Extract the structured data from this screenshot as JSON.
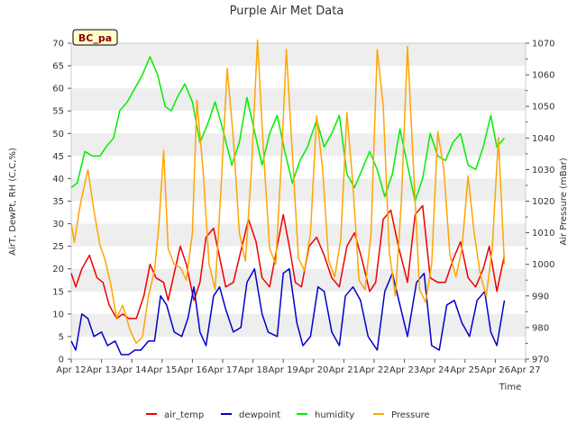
{
  "chart_data": {
    "type": "line",
    "title": "Purple Air Met Data",
    "xlabel": "Time",
    "ylabel": "AirT, DewPt, RH (C,C,%)",
    "y2label": "Air Pressure (mBar)",
    "xlim": [
      12,
      27
    ],
    "ylim": [
      0,
      70
    ],
    "y2lim": [
      970,
      1070
    ],
    "x_ticks": [
      12,
      13,
      14,
      15,
      16,
      17,
      18,
      19,
      20,
      21,
      22,
      23,
      24,
      25,
      26,
      27
    ],
    "x_tick_labels": [
      "Apr 12",
      "Apr 13",
      "Apr 14",
      "Apr 15",
      "Apr 16",
      "Apr 17",
      "Apr 18",
      "Apr 19",
      "Apr 20",
      "Apr 21",
      "Apr 22",
      "Apr 23",
      "Apr 24",
      "Apr 25",
      "Apr 26",
      "Apr 27"
    ],
    "y_ticks": [
      0,
      5,
      10,
      15,
      20,
      25,
      30,
      35,
      40,
      45,
      50,
      55,
      60,
      65,
      70
    ],
    "y2_ticks": [
      970,
      980,
      990,
      1000,
      1010,
      1020,
      1030,
      1040,
      1050,
      1060,
      1070
    ],
    "grid": "horizontal bands",
    "legend_position": "bottom",
    "annotation": "BC_pa",
    "series": [
      {
        "name": "air_temp",
        "axis": "left",
        "color": "#ee0000",
        "x": [
          12.0,
          12.15,
          12.35,
          12.6,
          12.85,
          13.05,
          13.25,
          13.5,
          13.7,
          13.9,
          14.15,
          14.4,
          14.6,
          14.8,
          15.05,
          15.2,
          15.4,
          15.6,
          15.8,
          16.05,
          16.25,
          16.45,
          16.7,
          16.85,
          17.1,
          17.35,
          17.6,
          17.85,
          18.1,
          18.3,
          18.55,
          18.8,
          19.0,
          19.2,
          19.4,
          19.6,
          19.85,
          20.1,
          20.35,
          20.6,
          20.85,
          21.1,
          21.35,
          21.6,
          21.85,
          22.05,
          22.3,
          22.55,
          22.8,
          23.1,
          23.35,
          23.6,
          23.85,
          24.1,
          24.35,
          24.6,
          24.85,
          25.1,
          25.35,
          25.6,
          25.8,
          26.05,
          26.3
        ],
        "y": [
          19,
          16,
          20,
          23,
          18,
          17,
          12,
          9,
          10,
          9,
          9,
          14,
          21,
          18,
          17,
          13,
          19,
          25,
          21,
          13,
          17,
          27,
          29,
          24,
          16,
          17,
          24,
          31,
          26,
          18,
          16,
          25,
          32,
          25,
          17,
          16,
          25,
          27,
          23,
          18,
          16,
          25,
          28,
          22,
          15,
          17,
          31,
          33,
          25,
          17,
          32,
          34,
          18,
          17,
          17,
          22,
          26,
          18,
          16,
          20,
          25,
          15,
          23
        ]
      },
      {
        "name": "dewpoint",
        "axis": "left",
        "color": "#0000cc",
        "x": [
          12.0,
          12.15,
          12.35,
          12.55,
          12.75,
          13.0,
          13.2,
          13.45,
          13.65,
          13.9,
          14.1,
          14.3,
          14.55,
          14.75,
          14.95,
          15.15,
          15.4,
          15.65,
          15.85,
          16.05,
          16.25,
          16.45,
          16.7,
          16.9,
          17.1,
          17.35,
          17.6,
          17.8,
          18.05,
          18.3,
          18.5,
          18.8,
          19.0,
          19.2,
          19.45,
          19.65,
          19.9,
          20.15,
          20.35,
          20.6,
          20.85,
          21.05,
          21.3,
          21.55,
          21.8,
          22.1,
          22.35,
          22.6,
          22.85,
          23.1,
          23.4,
          23.65,
          23.9,
          24.15,
          24.4,
          24.65,
          24.9,
          25.15,
          25.4,
          25.65,
          25.85,
          26.05,
          26.3
        ],
        "y": [
          4,
          2,
          10,
          9,
          5,
          6,
          3,
          4,
          1,
          1,
          2,
          2,
          4,
          4,
          14,
          12,
          6,
          5,
          9,
          16,
          6,
          3,
          14,
          16,
          11,
          6,
          7,
          17,
          20,
          10,
          6,
          5,
          19,
          20,
          8,
          3,
          5,
          16,
          15,
          6,
          3,
          14,
          16,
          13,
          5,
          2,
          15,
          19,
          12,
          5,
          17,
          19,
          3,
          2,
          12,
          13,
          8,
          5,
          13,
          15,
          6,
          3,
          13
        ]
      },
      {
        "name": "humidity",
        "axis": "left",
        "color": "#00ee00",
        "x": [
          12.0,
          12.2,
          12.45,
          12.7,
          12.95,
          13.15,
          13.4,
          13.6,
          13.85,
          14.1,
          14.35,
          14.6,
          14.85,
          15.1,
          15.3,
          15.5,
          15.75,
          16.0,
          16.25,
          16.5,
          16.75,
          17.0,
          17.3,
          17.55,
          17.8,
          18.0,
          18.3,
          18.55,
          18.8,
          19.05,
          19.3,
          19.55,
          19.8,
          20.1,
          20.35,
          20.6,
          20.85,
          21.1,
          21.35,
          21.6,
          21.85,
          22.1,
          22.35,
          22.6,
          22.85,
          23.1,
          23.35,
          23.6,
          23.85,
          24.1,
          24.35,
          24.6,
          24.85,
          25.1,
          25.35,
          25.6,
          25.85,
          26.05,
          26.3
        ],
        "y": [
          38,
          39,
          46,
          45,
          45,
          47,
          49,
          55,
          57,
          60,
          63,
          67,
          63,
          56,
          55,
          58,
          61,
          57,
          48,
          52,
          57,
          51,
          43,
          48,
          58,
          52,
          43,
          50,
          54,
          46,
          39,
          44,
          47,
          53,
          47,
          50,
          54,
          41,
          38,
          42,
          46,
          42,
          36,
          41,
          51,
          43,
          35,
          40,
          50,
          45,
          44,
          48,
          50,
          43,
          42,
          47,
          54,
          47,
          49
        ]
      },
      {
        "name": "Pressure",
        "axis": "right",
        "color": "#ffa500",
        "x": [
          12.0,
          12.1,
          12.3,
          12.55,
          12.75,
          12.95,
          13.1,
          13.3,
          13.5,
          13.7,
          13.95,
          14.15,
          14.35,
          14.55,
          14.75,
          14.9,
          15.05,
          15.2,
          15.4,
          15.6,
          15.8,
          16.0,
          16.15,
          16.35,
          16.55,
          16.75,
          16.95,
          17.15,
          17.35,
          17.55,
          17.75,
          17.95,
          18.15,
          18.35,
          18.55,
          18.75,
          18.95,
          19.1,
          19.3,
          19.5,
          19.7,
          19.9,
          20.1,
          20.3,
          20.5,
          20.7,
          20.9,
          21.1,
          21.3,
          21.5,
          21.7,
          21.9,
          22.1,
          22.3,
          22.5,
          22.7,
          22.9,
          23.1,
          23.3,
          23.5,
          23.7,
          23.9,
          24.1,
          24.3,
          24.5,
          24.7,
          24.9,
          25.1,
          25.3,
          25.5,
          25.7,
          25.9,
          26.1,
          26.3
        ],
        "y": [
          1013,
          1007,
          1019,
          1030,
          1017,
          1006,
          1002,
          994,
          983,
          987,
          979,
          975,
          977,
          990,
          998,
          1013,
          1036,
          1005,
          1000,
          999,
          995,
          1010,
          1052,
          1030,
          1000,
          992,
          1025,
          1062,
          1040,
          1010,
          1001,
          1030,
          1071,
          1035,
          1005,
          1000,
          1035,
          1068,
          1035,
          1002,
          998,
          1010,
          1047,
          1030,
          1001,
          996,
          1008,
          1048,
          1025,
          995,
          992,
          1010,
          1068,
          1050,
          1004,
          990,
          1020,
          1069,
          1030,
          992,
          988,
          1000,
          1042,
          1030,
          1003,
          996,
          1005,
          1028,
          1010,
          997,
          990,
          1005,
          1040,
          1000
        ]
      }
    ]
  }
}
